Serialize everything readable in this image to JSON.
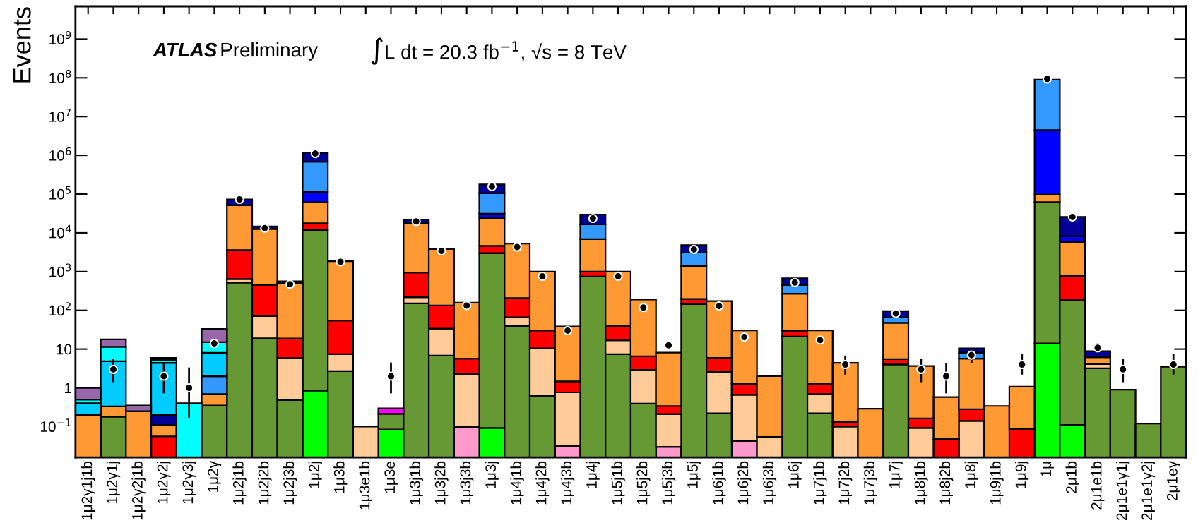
{
  "chart_data": {
    "type": "bar",
    "stacked": true,
    "log": true,
    "ylabel": "Events",
    "annotations": [
      "ATLAS",
      "Preliminary",
      "∫L dt = 20.3 fb$^{−1}$, √s = 8 TeV"
    ],
    "categories": [
      "1μ2γ1j1b",
      "1μ2γ1j",
      "1μ2γ2j1b",
      "1μ2γ2j",
      "1μ2γ3j",
      "1μ2γ",
      "1μ2j1b",
      "1μ2j2b",
      "1μ2j3b",
      "1μ2j",
      "1μ3b",
      "1μ3e1b",
      "1μ3e",
      "1μ3j1b",
      "1μ3j2b",
      "1μ3j3b",
      "1μ3j",
      "1μ4j1b",
      "1μ4j2b",
      "1μ4j3b",
      "1μ4j",
      "1μ5j1b",
      "1μ5j2b",
      "1μ5j3b",
      "1μ5j",
      "1μ6j1b",
      "1μ6j2b",
      "1μ6j3b",
      "1μ6j",
      "1μ7j1b",
      "1μ7j2b",
      "1μ7j3b",
      "1μ7j",
      "1μ8j1b",
      "1μ8j2b",
      "1μ8j",
      "1μ9j1b",
      "1μ9j",
      "1μ",
      "2μ1b",
      "2μ1e1b",
      "2μ1e1γ1j",
      "2μ1e1γ2j",
      "2μ1eγ"
    ],
    "ylim": [
      0.016,
      7000000000
    ],
    "yticks": [
      {
        "value": 0.1,
        "label": "10$^{−1}$"
      },
      1,
      10,
      {
        "value": 100,
        "label": "10$^{2}$"
      },
      {
        "value": 1000,
        "label": "10$^{3}$"
      },
      {
        "value": 10000,
        "label": "10$^{4}$"
      },
      {
        "value": 100000,
        "label": "10$^{5}$"
      },
      {
        "value": 1000000,
        "label": "10$^{6}$"
      },
      {
        "value": 10000000,
        "label": "10$^{7}$"
      },
      {
        "value": 100000000,
        "label": "10$^{8}$"
      },
      {
        "value": 1000000000,
        "label": "10$^{9}$"
      }
    ],
    "grid": false,
    "legend": false,
    "series": [
      {
        "color": "#00ff00",
        "values": [
          null,
          null,
          null,
          null,
          null,
          null,
          null,
          null,
          null,
          0.85,
          null,
          null,
          0.084,
          null,
          null,
          null,
          0.092,
          null,
          null,
          null,
          null,
          null,
          null,
          null,
          null,
          null,
          null,
          null,
          null,
          null,
          null,
          null,
          null,
          null,
          null,
          null,
          null,
          null,
          14,
          0.11,
          null,
          null,
          null,
          null
        ]
      },
      {
        "color": "#ff99cc",
        "values": [
          null,
          null,
          null,
          null,
          null,
          null,
          null,
          null,
          null,
          null,
          null,
          null,
          null,
          null,
          null,
          0.097,
          null,
          null,
          null,
          0.032,
          null,
          null,
          null,
          0.03,
          null,
          null,
          0.042,
          null,
          null,
          null,
          null,
          null,
          null,
          null,
          null,
          null,
          null,
          null,
          null,
          null,
          null,
          null,
          null,
          null
        ]
      },
      {
        "color": "#669933",
        "values": [
          null,
          0.18,
          null,
          null,
          null,
          0.35,
          520,
          19,
          0.49,
          11700,
          2.7,
          null,
          0.13,
          151,
          6.8,
          null,
          3000,
          39,
          0.63,
          null,
          743,
          7.4,
          0.39,
          null,
          146,
          0.22,
          null,
          null,
          21,
          0.22,
          null,
          null,
          4.0,
          null,
          null,
          null,
          null,
          null,
          62000,
          183,
          3.2,
          0.9,
          0.12,
          3.5
        ]
      },
      {
        "color": "#ffcc99",
        "values": [
          null,
          null,
          null,
          null,
          null,
          null,
          125,
          53,
          5.4,
          null,
          4.7,
          0.1,
          null,
          67,
          27,
          2.2,
          null,
          27,
          9.8,
          0.73,
          null,
          9.4,
          2.5,
          0.18,
          null,
          2.4,
          0.62,
          0.054,
          null,
          0.47,
          0.1,
          null,
          null,
          0.092,
          null,
          0.14,
          null,
          null,
          null,
          null,
          0.9,
          null,
          null,
          null
        ]
      },
      {
        "color": "#ff0000",
        "values": [
          null,
          null,
          null,
          0.056,
          null,
          null,
          2950,
          380,
          12.8,
          5900,
          47,
          null,
          null,
          730,
          99,
          3.4,
          1600,
          142,
          20,
          0.71,
          260,
          23,
          3.6,
          0.13,
          50,
          3.3,
          0.62,
          null,
          9,
          0.59,
          0.03,
          null,
          1.5,
          0.07,
          0.048,
          0.14,
          null,
          0.087,
          null,
          590,
          null,
          null,
          null,
          null
        ]
      },
      {
        "color": "#ff9933",
        "values": [
          0.2,
          0.15,
          0.25,
          0.054,
          null,
          0.34,
          48000,
          12200,
          480,
          44000,
          1800,
          null,
          null,
          17000,
          3700,
          152,
          19000,
          5100,
          970,
          37,
          5900,
          960,
          184,
          7.8,
          1200,
          168,
          29,
          1.95,
          238,
          29,
          4.3,
          0.29,
          42,
          3.5,
          0.53,
          5.4,
          0.34,
          0.98,
          34000,
          5000,
          2.1,
          null,
          null,
          null
        ]
      },
      {
        "color": "#0000ff",
        "values": [
          null,
          null,
          null,
          null,
          null,
          null,
          null,
          null,
          null,
          52000,
          null,
          null,
          null,
          null,
          null,
          null,
          7500,
          null,
          null,
          null,
          null,
          null,
          null,
          null,
          null,
          null,
          null,
          null,
          null,
          null,
          null,
          null,
          null,
          null,
          null,
          null,
          null,
          null,
          4400000,
          2400,
          null,
          null,
          null,
          null
        ]
      },
      {
        "color": "#3399ff",
        "values": [
          null,
          null,
          null,
          null,
          null,
          1.3,
          null,
          null,
          null,
          570000,
          null,
          null,
          null,
          null,
          null,
          null,
          74000,
          null,
          null,
          null,
          9700,
          null,
          null,
          null,
          1700,
          null,
          null,
          null,
          186,
          null,
          null,
          null,
          18,
          null,
          null,
          2.4,
          null,
          null,
          85000000,
          null,
          null,
          null,
          null,
          null
        ]
      },
      {
        "color": "#000099",
        "values": [
          null,
          null,
          null,
          0.09,
          null,
          null,
          21000,
          2000,
          60,
          490000,
          null,
          null,
          null,
          4000,
          null,
          null,
          72000,
          null,
          null,
          null,
          13000,
          null,
          null,
          null,
          1700,
          null,
          null,
          null,
          214,
          null,
          null,
          null,
          30,
          null,
          null,
          2.4,
          null,
          null,
          null,
          17500,
          2.6,
          null,
          null,
          null
        ]
      },
      {
        "color": "#00ccff",
        "values": [
          0.2,
          4.5,
          null,
          4.2,
          null,
          6,
          null,
          null,
          null,
          null,
          null,
          null,
          null,
          null,
          null,
          null,
          null,
          null,
          null,
          null,
          null,
          null,
          null,
          null,
          null,
          null,
          null,
          null,
          null,
          null,
          null,
          null,
          null,
          null,
          null,
          null,
          null,
          null,
          null,
          null,
          null,
          null,
          null,
          null
        ]
      },
      {
        "color": "#00ffff",
        "values": [
          0.1,
          6.6,
          null,
          0.8,
          0.4,
          7,
          null,
          null,
          null,
          null,
          null,
          null,
          null,
          null,
          null,
          null,
          null,
          null,
          null,
          null,
          null,
          null,
          null,
          null,
          null,
          null,
          null,
          null,
          null,
          null,
          null,
          null,
          null,
          null,
          null,
          null,
          null,
          null,
          null,
          null,
          null,
          null,
          null,
          null
        ]
      },
      {
        "color": "#9966aa",
        "values": [
          0.5,
          6.3,
          0.1,
          0.7,
          null,
          18,
          null,
          null,
          null,
          null,
          null,
          null,
          null,
          null,
          null,
          null,
          null,
          null,
          null,
          null,
          null,
          null,
          null,
          null,
          null,
          null,
          null,
          null,
          null,
          null,
          null,
          null,
          null,
          null,
          null,
          null,
          null,
          null,
          null,
          null,
          null,
          null,
          null,
          null
        ]
      },
      {
        "color": "#ff00ff",
        "values": [
          null,
          null,
          null,
          null,
          null,
          null,
          null,
          null,
          null,
          null,
          null,
          null,
          0.08,
          null,
          null,
          null,
          null,
          null,
          null,
          null,
          null,
          null,
          null,
          null,
          null,
          null,
          null,
          null,
          null,
          null,
          null,
          null,
          null,
          null,
          null,
          null,
          null,
          null,
          null,
          null,
          null,
          null,
          null,
          null
        ]
      },
      {
        "type": "scatter",
        "color": "#000000",
        "marker": "circle",
        "x": [
          "1μ2γ1j1b",
          "1μ2γ1j",
          "1μ2γ2j1b",
          "1μ2γ2j",
          "1μ2γ3j",
          "1μ2γ",
          "1μ2j1b",
          "1μ2j2b",
          "1μ2j3b",
          "1μ2j",
          "1μ3b",
          "1μ3e1b",
          "1μ3e",
          "1μ3j1b",
          "1μ3j2b",
          "1μ3j3b",
          "1μ3j",
          "1μ4j1b",
          "1μ4j2b",
          "1μ4j3b",
          "1μ4j",
          "1μ5j1b",
          "1μ5j2b",
          "1μ5j3b",
          "1μ5j",
          "1μ6j1b",
          "1μ6j2b",
          "1μ6j3b",
          "1μ6j",
          "1μ7j1b",
          "1μ7j2b",
          "1μ7j3b",
          "1μ7j",
          "1μ8j1b",
          "1μ8j2b",
          "1μ8j",
          "1μ9j1b",
          "1μ9j",
          "1μ",
          "2μ1b",
          "2μ1e1b",
          "2μ1e1γ1j",
          "2μ1e1γ2j",
          "2μ1eγ"
        ],
        "values": [
          null,
          3,
          null,
          2,
          1,
          14,
          73000,
          13200,
          470,
          1110000,
          1790,
          null,
          2,
          19700,
          3420,
          133,
          156000,
          4300,
          757,
          30,
          23500,
          757,
          118,
          12.5,
          3730,
          129,
          20.4,
          null,
          524,
          17.1,
          4,
          null,
          83,
          3,
          2,
          7,
          null,
          4,
          94000000,
          25700,
          10.8,
          3,
          null,
          4
        ],
        "errors": [
          null,
          [
            1.4,
            5.7
          ],
          null,
          [
            0.72,
            4.4
          ],
          [
            0.17,
            3.35
          ],
          [
            10.8,
            17.7
          ],
          null,
          null,
          null,
          null,
          null,
          null,
          [
            0.72,
            4.5
          ],
          null,
          null,
          null,
          null,
          null,
          null,
          [
            25,
            36
          ],
          null,
          null,
          null,
          [
            9.6,
            16.3
          ],
          null,
          null,
          [
            16,
            25
          ],
          null,
          null,
          [
            13,
            21
          ],
          [
            2.2,
            6.8
          ],
          null,
          null,
          [
            1.4,
            5.6
          ],
          [
            0.72,
            4.4
          ],
          [
            4.4,
            10.5
          ],
          null,
          [
            2.2,
            7.4
          ],
          null,
          null,
          [
            7.6,
            14
          ],
          [
            1.4,
            5.6
          ],
          null,
          [
            2.2,
            7.4
          ]
        ]
      }
    ]
  }
}
